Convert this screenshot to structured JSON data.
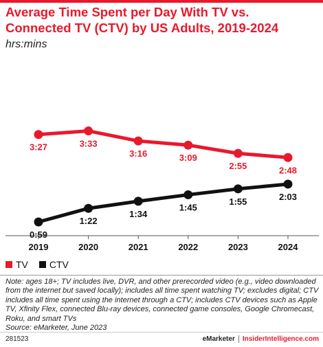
{
  "title": "Average Time Spent per Day With TV vs. Connected TV (CTV) by US Adults, 2019-2024",
  "subtitle": "hrs:mins",
  "chart_data": {
    "type": "line",
    "title": "Average Time Spent per Day With TV vs. Connected TV (CTV) by US Adults, 2019-2024",
    "ylabel": "hrs:mins",
    "x": [
      "2019",
      "2020",
      "2021",
      "2022",
      "2023",
      "2024"
    ],
    "ylim": [
      0,
      240
    ],
    "grid": false,
    "legend": "bottom-left",
    "series": [
      {
        "name": "TV",
        "color": "#e8192c",
        "values": [
          207,
          213,
          196,
          189,
          175,
          168
        ],
        "labels": [
          "3:27",
          "3:33",
          "3:16",
          "3:09",
          "2:55",
          "2:48"
        ]
      },
      {
        "name": "CTV",
        "color": "#111111",
        "values": [
          59,
          82,
          94,
          105,
          115,
          123
        ],
        "labels": [
          "0:59",
          "1:22",
          "1:34",
          "1:45",
          "1:55",
          "2:03"
        ]
      }
    ]
  },
  "legend": {
    "tv_label": "TV",
    "ctv_label": "CTV"
  },
  "note": "Note: ages 18+; TV includes live, DVR, and other prerecorded video (e.g., video downloaded from the internet but saved locally); includes all time spent watching TV; excludes digital; CTV includes all time spent using the internet through a CTV; includes CTV devices such as Apple TV, Xfinity Flex, connected Blu-ray devices, connected game consoles, Google Chromecast, Roku, and smart TVs",
  "source": "Source: eMarketer, June 2023",
  "footer": {
    "chart_id": "281523",
    "brand_left": "eMarketer",
    "brand_right": "InsiderIntelligence.com"
  }
}
